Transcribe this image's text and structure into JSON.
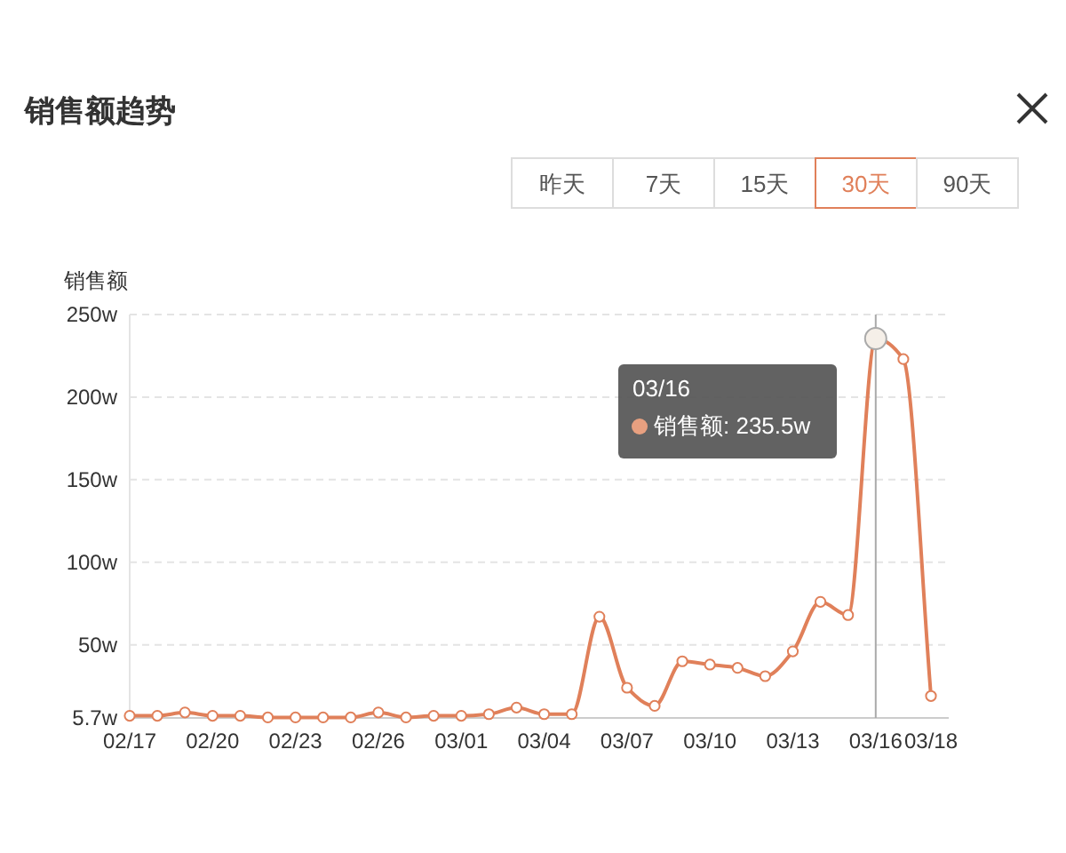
{
  "chart_data": {
    "type": "line",
    "title": "销售额趋势",
    "ylabel": "销售额",
    "categories": [
      "02/17",
      null,
      null,
      "02/20",
      null,
      null,
      "02/23",
      null,
      null,
      "02/26",
      null,
      null,
      "03/01",
      null,
      null,
      "03/04",
      null,
      null,
      "03/07",
      null,
      null,
      "03/10",
      null,
      null,
      "03/13",
      null,
      null,
      "03/16",
      null,
      "03/18"
    ],
    "series": [
      {
        "color": "#e0805a",
        "values": [
          7,
          7,
          9,
          7,
          7,
          6,
          6,
          6,
          6,
          9,
          6,
          7,
          7,
          8,
          12,
          8,
          8,
          67,
          24,
          13,
          40,
          38,
          36,
          31,
          46,
          76,
          68,
          235.5,
          223,
          19
        ]
      }
    ],
    "ylim": [
      5.7,
      250
    ],
    "yticks": [
      {
        "value": 5.7,
        "label": "5.7w"
      },
      {
        "value": 50,
        "label": "50w"
      },
      {
        "value": 100,
        "label": "100w"
      },
      {
        "value": 150,
        "label": "150w"
      },
      {
        "value": 200,
        "label": "200w"
      },
      {
        "value": 250,
        "label": "250w"
      }
    ],
    "grid": "y",
    "marker": "circle",
    "line_style": "solid",
    "ref_lines": [
      {
        "axis": "x",
        "value": "03/16",
        "color": "#aaaaaa"
      }
    ],
    "annotations": [
      "昨天",
      "7天",
      "15天",
      "30天",
      "90天",
      "03/16",
      "销售额: 235.5w"
    ]
  }
}
